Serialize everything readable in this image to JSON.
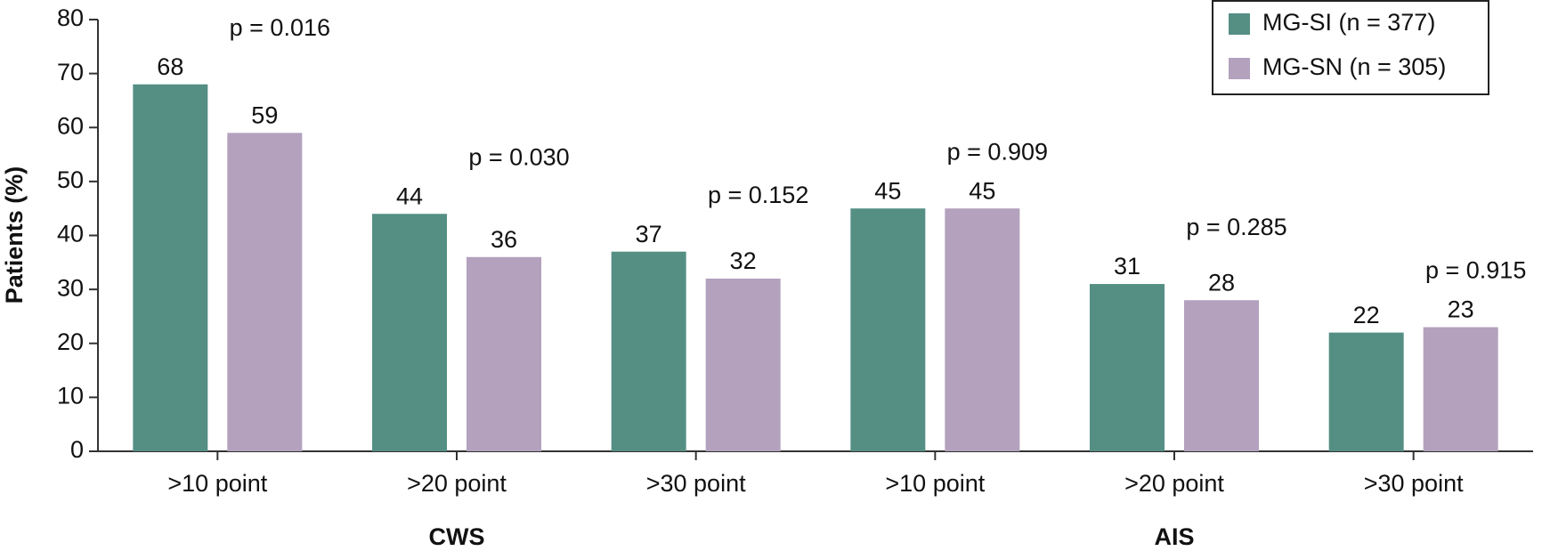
{
  "chart_data": {
    "type": "bar",
    "y_label": "Patients (%)",
    "categories": [
      ">10 point",
      ">20 point",
      ">30 point",
      ">10 point",
      ">20 point",
      ">30 point"
    ],
    "groups": [
      "CWS",
      "AIS"
    ],
    "series": [
      {
        "name": "MG-SI (n = 377)",
        "color": "#558f84",
        "values": [
          68,
          44,
          37,
          45,
          31,
          22
        ]
      },
      {
        "name": "MG-SN (n = 305)",
        "color": "#b3a1bd",
        "values": [
          59,
          36,
          32,
          45,
          28,
          23
        ]
      }
    ],
    "annotations": [
      "p = 0.016",
      "p = 0.030",
      "p = 0.152",
      "p = 0.909",
      "p = 0.285",
      "p = 0.915"
    ],
    "ylim": [
      0,
      80
    ],
    "yticks": [
      0,
      10,
      20,
      30,
      40,
      50,
      60,
      70,
      80
    ],
    "grid": false,
    "legend": "top-right"
  }
}
